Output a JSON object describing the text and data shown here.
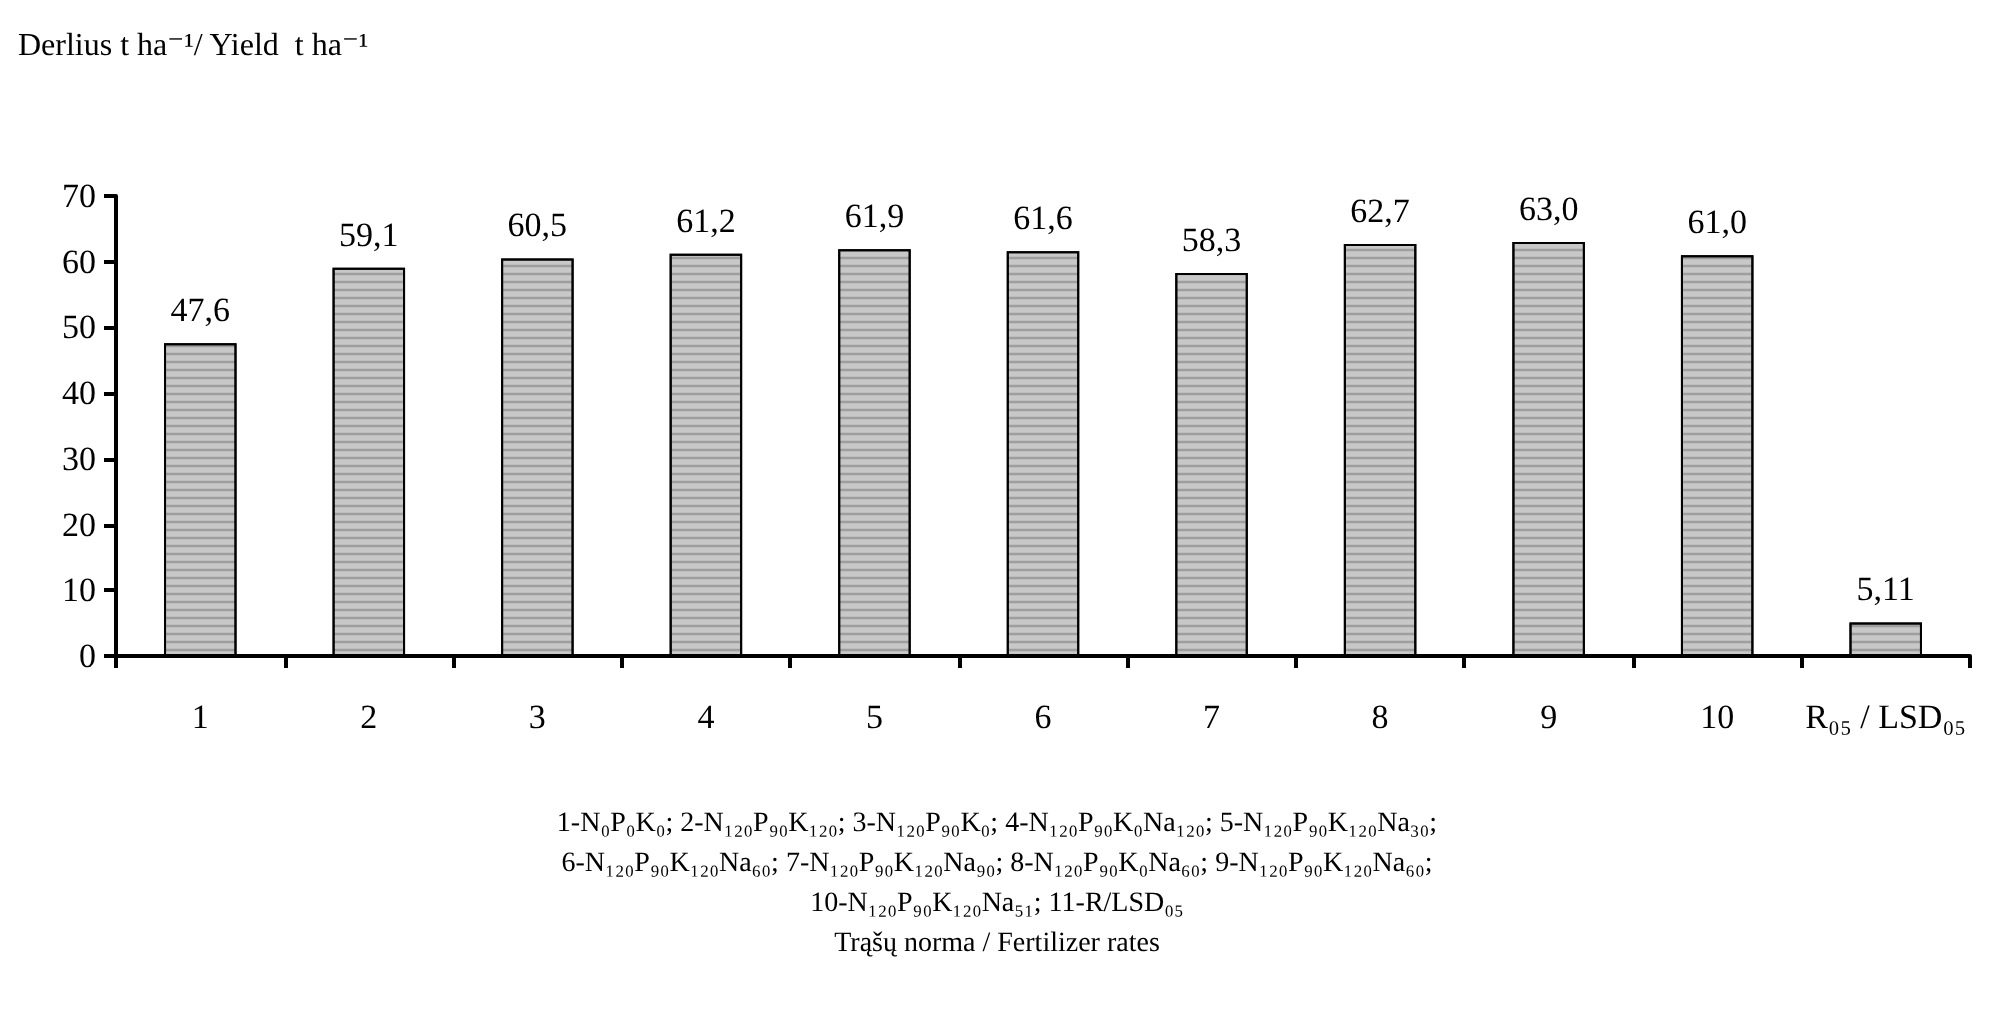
{
  "chart_data": {
    "type": "bar",
    "ylabel": "Derlius t ha⁻¹/ Yield  t ha⁻¹",
    "categories": [
      "1",
      "2",
      "3",
      "4",
      "5",
      "6",
      "7",
      "8",
      "9",
      "10",
      "R₀₅ / LSD₀₅"
    ],
    "values": [
      47.6,
      59.1,
      60.5,
      61.2,
      61.9,
      61.6,
      58.3,
      62.7,
      63.0,
      61.0,
      5.11
    ],
    "value_labels": [
      "47,6",
      "59,1",
      "60,5",
      "61,2",
      "61,9",
      "61,6",
      "58,3",
      "62,7",
      "63,0",
      "61,0",
      "5,11"
    ],
    "color": "#c8c8c8",
    "ylim": [
      0,
      70
    ],
    "yticks": [
      0,
      10,
      20,
      30,
      40,
      50,
      60,
      70
    ],
    "grid": false,
    "annotations": [
      "1-N₀P₀K₀; 2-N₁₂₀P₉₀K₁₂₀; 3-N₁₂₀P₉₀K₀; 4-N₁₂₀P₉₀K₀Na₁₂₀; 5-N₁₂₀P₉₀K₁₂₀Na₃₀;",
      "6-N₁₂₀P₉₀K₁₂₀Na₆₀; 7-N₁₂₀P₉₀K₁₂₀Na₉₀; 8-N₁₂₀P₉₀K₀Na₆₀; 9-N₁₂₀P₉₀K₁₂₀Na₆₀;",
      "10-N₁₂₀P₉₀K₁₂₀Na₅₁; 11-R/LSD₀₅",
      "Trąšų norma / Fertilizer rates"
    ]
  }
}
